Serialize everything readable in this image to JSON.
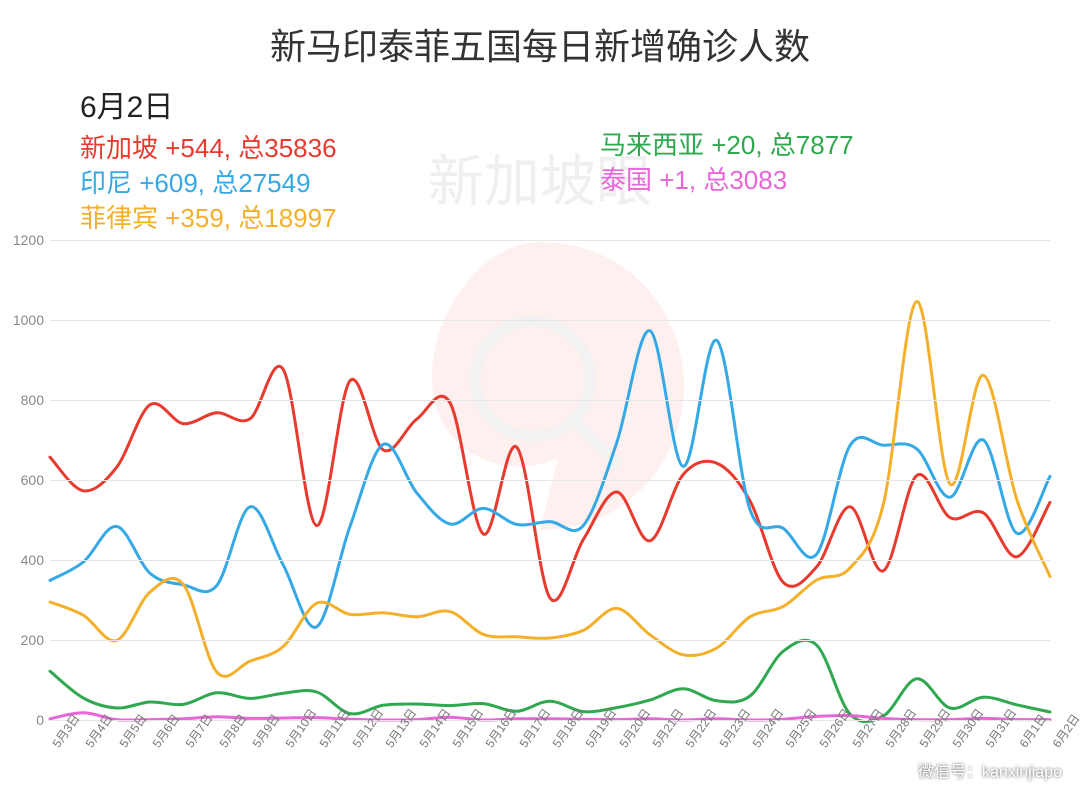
{
  "title": "新马印泰菲五国每日新增确诊人数",
  "date_heading": "6月2日",
  "legend_left": [
    {
      "key": "sg",
      "text": "新加坡 +544, 总35836",
      "color": "#e83a2e"
    },
    {
      "key": "id",
      "text": "印尼 +609, 总27549",
      "color": "#35a8e6"
    },
    {
      "key": "ph",
      "text": "菲律宾 +359, 总18997",
      "color": "#f4b02a"
    }
  ],
  "legend_right": [
    {
      "key": "my",
      "text": "马来西亚 +20, 总7877",
      "color": "#2fa84f"
    },
    {
      "key": "th",
      "text": "泰国 +1, 总3083",
      "color": "#e866d8"
    }
  ],
  "chart": {
    "type": "line",
    "background_color": "#ffffff",
    "grid_color": "#e6e6e6",
    "axis_label_color": "#888888",
    "ylim": [
      0,
      1200
    ],
    "ytick_step": 200,
    "yticks": [
      0,
      200,
      400,
      600,
      800,
      1000,
      1200
    ],
    "line_width": 3,
    "smooth": true,
    "x_labels": [
      "5月3日",
      "5月4日",
      "5月5日",
      "5月6日",
      "5月7日",
      "5月8日",
      "5月9日",
      "5月10日",
      "5月11日",
      "5月12日",
      "5月13日",
      "5月14日",
      "5月15日",
      "5月16日",
      "5月17日",
      "5月18日",
      "5月19日",
      "5月20日",
      "5月21日",
      "5月22日",
      "5月23日",
      "5月24日",
      "5月25日",
      "5月26日",
      "5月27日",
      "5月28日",
      "5月29日",
      "5月30日",
      "5月31日",
      "6月1日",
      "6月2日"
    ],
    "series": [
      {
        "key": "sg",
        "name": "新加坡",
        "color": "#e83a2e",
        "values": [
          657,
          573,
          632,
          788,
          741,
          768,
          753,
          876,
          486,
          848,
          675,
          752,
          793,
          465,
          682,
          305,
          451,
          570,
          448,
          614,
          642,
          548,
          344,
          383,
          533,
          373,
          611,
          506,
          518,
          408,
          544
        ]
      },
      {
        "key": "id",
        "name": "印尼",
        "color": "#35a8e6",
        "values": [
          349,
          395,
          484,
          367,
          338,
          336,
          533,
          387,
          233,
          484,
          689,
          568,
          490,
          529,
          489,
          496,
          486,
          693,
          973,
          634,
          949,
          526,
          479,
          415,
          686,
          687,
          678,
          557,
          700,
          467,
          609
        ]
      },
      {
        "key": "ph",
        "name": "菲律宾",
        "color": "#f4b02a",
        "values": [
          295,
          262,
          199,
          320,
          339,
          120,
          147,
          184,
          292,
          264,
          268,
          258,
          271,
          214,
          208,
          205,
          224,
          279,
          213,
          163,
          180,
          258,
          284,
          350,
          380,
          539,
          1046,
          590,
          862,
          552,
          359
        ]
      },
      {
        "key": "my",
        "name": "马来西亚",
        "color": "#2fa84f",
        "values": [
          122,
          55,
          30,
          45,
          39,
          68,
          54,
          67,
          70,
          16,
          37,
          40,
          36,
          41,
          22,
          47,
          21,
          31,
          50,
          78,
          48,
          60,
          172,
          187,
          15,
          10,
          103,
          30,
          57,
          38,
          20
        ]
      },
      {
        "key": "th",
        "name": "泰国",
        "color": "#e866d8",
        "values": [
          3,
          18,
          1,
          1,
          3,
          8,
          4,
          5,
          6,
          2,
          0,
          1,
          7,
          0,
          3,
          3,
          2,
          1,
          3,
          0,
          3,
          0,
          2,
          9,
          11,
          4,
          1,
          1,
          4,
          1,
          1
        ]
      }
    ]
  },
  "watermark_text": "新加坡眼",
  "wechat_label": "微信号：kanxinjiapo"
}
